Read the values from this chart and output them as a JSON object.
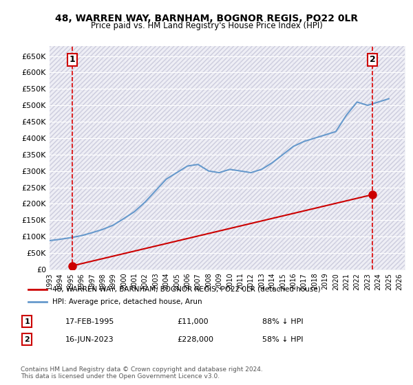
{
  "title": "48, WARREN WAY, BARNHAM, BOGNOR REGIS, PO22 0LR",
  "subtitle": "Price paid vs. HM Land Registry's House Price Index (HPI)",
  "ylabel": "",
  "yticks": [
    0,
    50000,
    100000,
    150000,
    200000,
    250000,
    300000,
    350000,
    400000,
    450000,
    500000,
    550000,
    600000,
    650000
  ],
  "ytick_labels": [
    "£0",
    "£50K",
    "£100K",
    "£150K",
    "£200K",
    "£250K",
    "£300K",
    "£350K",
    "£400K",
    "£450K",
    "£500K",
    "£550K",
    "£600K",
    "£650K"
  ],
  "xlim_start": 1993.0,
  "xlim_end": 2026.5,
  "ylim_bottom": 0,
  "ylim_top": 680000,
  "sale1_x": 1995.12,
  "sale1_y": 11000,
  "sale1_label": "1",
  "sale2_x": 2023.46,
  "sale2_y": 228000,
  "sale2_label": "2",
  "sale_color": "#cc0000",
  "hpi_color": "#6699cc",
  "hpi_line_color": "#aaccee",
  "annotation_vline_color": "#dd0000",
  "background_hatch_color": "#e8e8f0",
  "legend_line1": "48, WARREN WAY, BARNHAM, BOGNOR REGIS, PO22 0LR (detached house)",
  "legend_line2": "HPI: Average price, detached house, Arun",
  "footer1": "Contains HM Land Registry data © Crown copyright and database right 2024.",
  "footer2": "This data is licensed under the Open Government Licence v3.0.",
  "table_row1_num": "1",
  "table_row1_date": "17-FEB-1995",
  "table_row1_price": "£11,000",
  "table_row1_hpi": "88% ↓ HPI",
  "table_row2_num": "2",
  "table_row2_date": "16-JUN-2023",
  "table_row2_price": "£228,000",
  "table_row2_hpi": "58% ↓ HPI",
  "hpi_years": [
    1993,
    1994,
    1995,
    1996,
    1997,
    1998,
    1999,
    2000,
    2001,
    2002,
    2003,
    2004,
    2005,
    2006,
    2007,
    2008,
    2009,
    2010,
    2011,
    2012,
    2013,
    2014,
    2015,
    2016,
    2017,
    2018,
    2019,
    2020,
    2021,
    2022,
    2023,
    2024,
    2025
  ],
  "hpi_values": [
    88000,
    92000,
    97000,
    103000,
    112000,
    122000,
    135000,
    155000,
    176000,
    205000,
    240000,
    275000,
    295000,
    315000,
    320000,
    300000,
    295000,
    305000,
    300000,
    295000,
    305000,
    325000,
    350000,
    375000,
    390000,
    400000,
    410000,
    420000,
    470000,
    510000,
    500000,
    510000,
    520000
  ],
  "xtick_years": [
    1993,
    1994,
    1995,
    1996,
    1997,
    1998,
    1999,
    2000,
    2001,
    2002,
    2003,
    2004,
    2005,
    2006,
    2007,
    2008,
    2009,
    2010,
    2011,
    2012,
    2013,
    2014,
    2015,
    2016,
    2017,
    2018,
    2019,
    2020,
    2021,
    2022,
    2023,
    2024,
    2025,
    2026
  ]
}
